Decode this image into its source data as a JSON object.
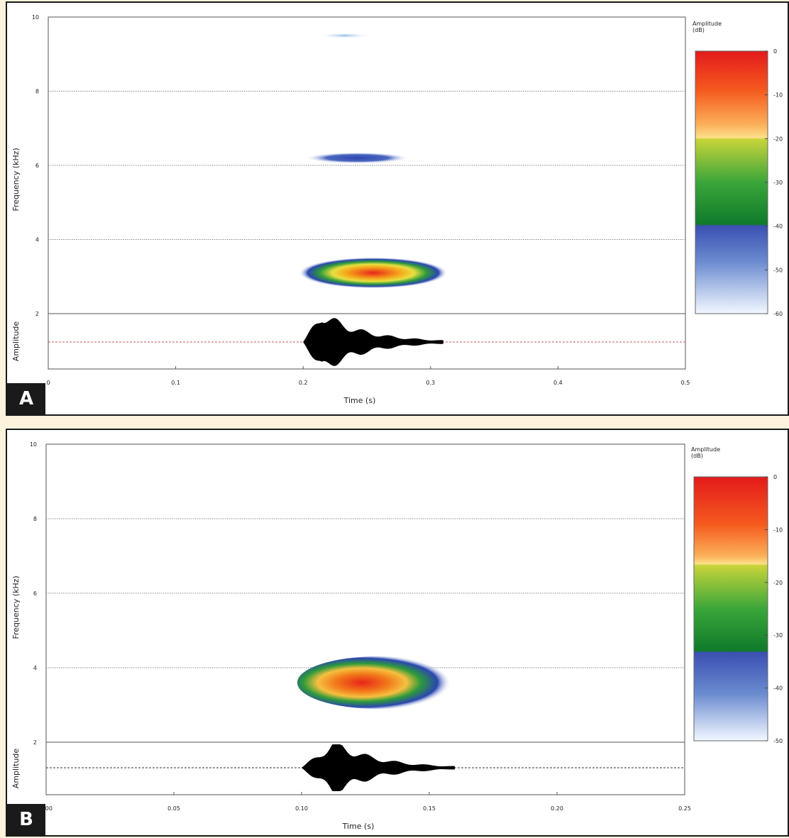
{
  "chart_data": [
    {
      "type": "heatmap",
      "panel_label": "A",
      "xlabel": "Time (s)",
      "ylabel_top": "Frequency (kHz)",
      "ylabel_bottom": "Amplitude",
      "xlim": [
        0,
        0.5
      ],
      "ylim": [
        2,
        10
      ],
      "x_ticks": [
        "0",
        "0.1",
        "0.2",
        "0.3",
        "0.4",
        "0.5"
      ],
      "x_tick_values": [
        0,
        0.1,
        0.2,
        0.3,
        0.4,
        0.5
      ],
      "y_ticks": [
        "10",
        "8",
        "6",
        "4",
        "2"
      ],
      "y_tick_values": [
        10,
        8,
        6,
        4,
        2
      ],
      "grid": true,
      "colorbar": {
        "title": "Amplitude",
        "unit": "(dB)",
        "ticks": [
          "0",
          "-10",
          "-20",
          "-30",
          "-40",
          "-50",
          "-60"
        ],
        "range": [
          -60,
          0
        ]
      },
      "spectro_blobs": [
        {
          "t0": 0.2,
          "t1": 0.31,
          "f": 3.1,
          "peak_db": 0
        },
        {
          "t0": 0.205,
          "t1": 0.28,
          "f": 6.2,
          "peak_db": -45
        },
        {
          "t0": 0.215,
          "t1": 0.25,
          "f": 9.5,
          "peak_db": -55
        }
      ],
      "waveform": {
        "t0": 0.2,
        "t1": 0.31,
        "peak_t": 0.215
      }
    },
    {
      "type": "heatmap",
      "panel_label": "B",
      "xlabel": "Time (s)",
      "ylabel_top": "Frequency (kHz)",
      "ylabel_bottom": "Amplitude",
      "xlim": [
        0,
        0.25
      ],
      "ylim": [
        2,
        10
      ],
      "x_ticks": [
        "0.00",
        "0.05",
        "0.10",
        "0.15",
        "0.20",
        "0.25"
      ],
      "x_tick_values": [
        0,
        0.05,
        0.1,
        0.15,
        0.2,
        0.25
      ],
      "y_ticks": [
        "10",
        "8",
        "6",
        "4",
        "2"
      ],
      "y_tick_values": [
        10,
        8,
        6,
        4,
        2
      ],
      "grid": true,
      "colorbar": {
        "title": "Amplitude",
        "unit": "(dB)",
        "ticks": [
          "0",
          "-10",
          "-20",
          "-30",
          "-40",
          "-50"
        ],
        "range": [
          -50,
          0
        ]
      },
      "spectro_blobs": [
        {
          "t0": 0.1,
          "t1": 0.16,
          "f": 3.6,
          "peak_db": 0
        }
      ],
      "waveform": {
        "t0": 0.1,
        "t1": 0.16,
        "peak_t": 0.113
      }
    }
  ]
}
